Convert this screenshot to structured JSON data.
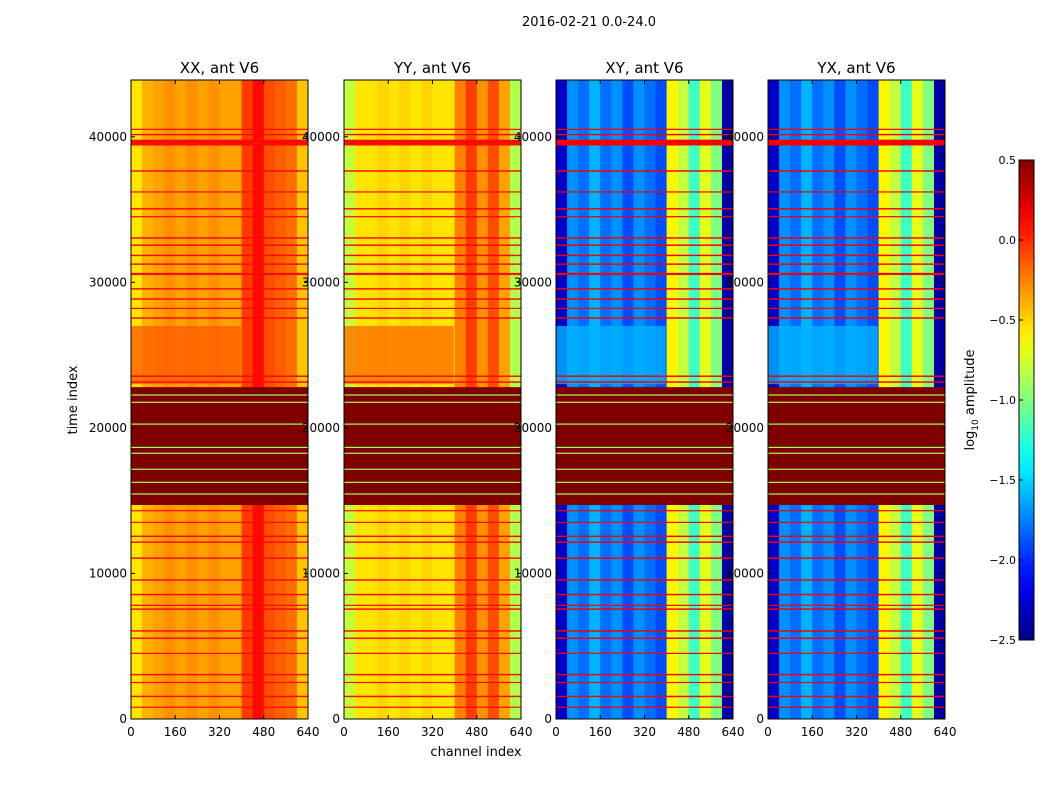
{
  "chart_data": {
    "type": "heatmap",
    "title": "2016-02-21 0.0-24.0",
    "xlabel": "channel index",
    "ylabel": "time index",
    "xlim": [
      0,
      640
    ],
    "ylim": [
      0,
      43900
    ],
    "xticks": [
      "0",
      "160",
      "320",
      "480",
      "640"
    ],
    "xtick_values": [
      0,
      160,
      320,
      480,
      640
    ],
    "yticks": [
      "0",
      "10000",
      "20000",
      "30000",
      "40000"
    ],
    "ytick_values": [
      0,
      10000,
      20000,
      30000,
      40000
    ],
    "colorbar": {
      "label": "log10 amplitude",
      "label_base": "log",
      "label_sub": "10",
      "label_rest": " amplitude",
      "range": [
        -2.5,
        0.5
      ],
      "ticks": [
        "0.5",
        "0.0",
        "−0.5",
        "−1.0",
        "−1.5",
        "−2.0",
        "−2.5"
      ],
      "tick_values": [
        0.5,
        0.0,
        -0.5,
        -1.0,
        -1.5,
        -2.0,
        -2.5
      ],
      "colormap": "jet"
    },
    "panels": [
      {
        "title": "XX, ant V6",
        "channel_bin": 40,
        "channel_values": [
          -0.55,
          -0.4,
          -0.35,
          -0.3,
          -0.35,
          -0.3,
          -0.35,
          -0.3,
          -0.35,
          -0.35,
          -0.05,
          0.1,
          -0.1,
          -0.15,
          -0.2,
          -0.45
        ],
        "band_value": -0.15,
        "rfi_value": 0.1
      },
      {
        "title": "YY, ant V6",
        "channel_bin": 40,
        "channel_values": [
          -0.8,
          -0.55,
          -0.55,
          -0.5,
          -0.55,
          -0.5,
          -0.55,
          -0.5,
          -0.55,
          -0.55,
          -0.25,
          -0.05,
          -0.3,
          -0.1,
          -0.35,
          -0.85
        ],
        "band_value": -0.2,
        "rfi_value": 0.1
      },
      {
        "title": "XY, ant V6",
        "channel_bin": 40,
        "channel_values": [
          -2.3,
          -1.7,
          -1.8,
          -1.6,
          -1.8,
          -1.7,
          -1.9,
          -1.7,
          -1.8,
          -1.9,
          -0.6,
          -0.8,
          -1.2,
          -0.7,
          -1.0,
          -2.4
        ],
        "band_value": -1.6,
        "rfi_value": 0.15
      },
      {
        "title": "YX, ant V6",
        "channel_bin": 40,
        "channel_values": [
          -2.3,
          -1.7,
          -1.8,
          -1.6,
          -1.8,
          -1.7,
          -1.9,
          -1.7,
          -1.8,
          -1.9,
          -0.6,
          -0.8,
          -1.2,
          -0.7,
          -1.0,
          -2.4
        ],
        "band_value": -1.6,
        "rfi_value": 0.15
      }
    ],
    "band_range": [
      23000,
      27000
    ],
    "flagged_block": {
      "range": [
        14700,
        22800
      ],
      "value": 0.5
    },
    "green_lines": [
      15500,
      16300,
      17200,
      18300,
      18700,
      20300,
      21800,
      22300
    ],
    "green_value": -0.9,
    "rfi_lines": [
      [
        39400,
        39800
      ],
      [
        40100,
        40200
      ],
      [
        40500,
        40550
      ],
      [
        37600,
        37700
      ],
      [
        36200,
        36250
      ],
      [
        35000,
        35100
      ],
      [
        34500,
        34550
      ],
      [
        33000,
        33100
      ],
      [
        32500,
        32600
      ],
      [
        31800,
        31900
      ],
      [
        31200,
        31300
      ],
      [
        30500,
        30650
      ],
      [
        29500,
        29600
      ],
      [
        28800,
        28900
      ],
      [
        28200,
        28250
      ],
      [
        27500,
        27600
      ],
      [
        23500,
        23600
      ],
      [
        23100,
        23200
      ],
      [
        14300,
        14350
      ],
      [
        13500,
        13550
      ],
      [
        12500,
        12600
      ],
      [
        12100,
        12200
      ],
      [
        11000,
        11100
      ],
      [
        9500,
        9600
      ],
      [
        8500,
        8600
      ],
      [
        7800,
        7850
      ],
      [
        7500,
        7600
      ],
      [
        6000,
        6100
      ],
      [
        5500,
        5600
      ],
      [
        4500,
        4550
      ],
      [
        3000,
        3100
      ],
      [
        2500,
        2550
      ],
      [
        1500,
        1600
      ],
      [
        800,
        850
      ]
    ]
  }
}
